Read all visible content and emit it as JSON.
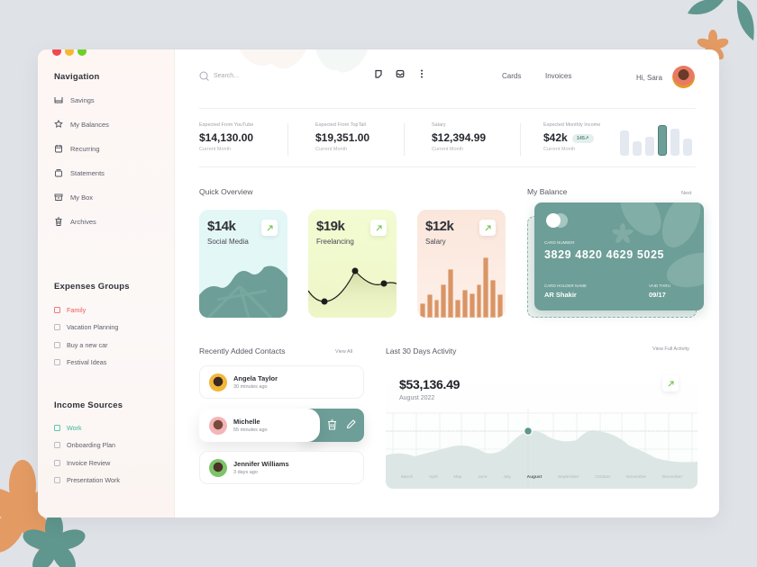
{
  "window": {
    "traffic_lights": [
      "#f0484e",
      "#f7b733",
      "#6fcf2d"
    ]
  },
  "sidebar": {
    "nav_title": "Navigation",
    "nav_items": [
      {
        "label": "Savings",
        "icon": "savings-icon"
      },
      {
        "label": "My Balances",
        "icon": "star-badge-icon"
      },
      {
        "label": "Recurring",
        "icon": "calendar-icon"
      },
      {
        "label": "Statements",
        "icon": "stack-icon"
      },
      {
        "label": "My Box",
        "icon": "archive-box-icon"
      },
      {
        "label": "Archives",
        "icon": "trash-icon"
      }
    ],
    "expenses_title": "Expenses  Groups",
    "expenses": [
      {
        "label": "Family",
        "active": true,
        "color": "#ec5b55"
      },
      {
        "label": "Vacation Planning"
      },
      {
        "label": "Buy a new car"
      },
      {
        "label": "Festival Ideas"
      }
    ],
    "income_title": "Income Sources",
    "income": [
      {
        "label": "Work",
        "active": true,
        "color": "#3bb99b"
      },
      {
        "label": "Onboarding Plan"
      },
      {
        "label": "Invoice Review"
      },
      {
        "label": "Presentation Work"
      }
    ]
  },
  "header": {
    "search_placeholder": "Search...",
    "icons": [
      "notes-icon",
      "inbox-icon",
      "more-vertical-icon"
    ],
    "nav": [
      "Cards",
      "Invoices"
    ],
    "greeting": "Hi, Sara"
  },
  "stats": [
    {
      "label": "Expected From YouTube",
      "value": "$14,130.00",
      "sub": "Current Month"
    },
    {
      "label": "Expected From TopTall",
      "value": "$19,351.00",
      "sub": "Current Month"
    },
    {
      "label": "Salary",
      "value": "$12,394.99",
      "sub": "Current Month"
    },
    {
      "label": "Expected Monthly Income",
      "value": "$42k",
      "badge": "145↗",
      "sub": "Current Month",
      "bars": [
        0.82,
        0.48,
        0.62,
        1.0,
        0.88,
        0.55
      ],
      "active_bar": 3
    }
  ],
  "quick_overview": {
    "title": "Quick Overview",
    "cards": [
      {
        "amount": "$14k",
        "label": "Social Media",
        "bg": "#e4f7f7",
        "accent": "#6d9e97"
      },
      {
        "amount": "$19k",
        "label": "Freelancing",
        "bg": "#f1f8cf",
        "accent": "#222"
      },
      {
        "amount": "$12k",
        "label": "Salary",
        "bg": "#fbe9df",
        "accent": "#d99566",
        "bars": [
          0.23,
          0.38,
          0.3,
          0.55,
          0.8,
          0.3,
          0.45,
          0.4,
          0.55,
          0.98,
          0.62,
          0.38
        ]
      }
    ]
  },
  "balance": {
    "title": "My Balance",
    "next_label": "Next",
    "card_number_label": "CARD NUMBER",
    "card_number": "3829 4820 4629 5025",
    "holder_label": "CARD HOLDER NAME",
    "holder": "AR Shakir",
    "valid_label": "VAID THRU",
    "valid": "09/17"
  },
  "contacts": {
    "title": "Recently Added Contacts",
    "view_all": "View All",
    "items": [
      {
        "name": "Angela Taylor",
        "time": "30 minutes ago",
        "avatar_bg": "#f2b63a"
      },
      {
        "name": "Michelle",
        "time": "55 minutes ago",
        "avatar_bg": "#f3b5b8",
        "swiped": true
      },
      {
        "name": "Jennifer Williams",
        "time": "3 days ago",
        "avatar_bg": "#7dc36a"
      }
    ]
  },
  "activity": {
    "title": "Last 30 Days Activity",
    "view_full": "View Full Activity",
    "amount": "$53,136.49",
    "period": "August 2022",
    "months": [
      "March",
      "April",
      "May",
      "June",
      "July",
      "August",
      "September",
      "October",
      "November",
      "December"
    ],
    "active_month": "August"
  }
}
